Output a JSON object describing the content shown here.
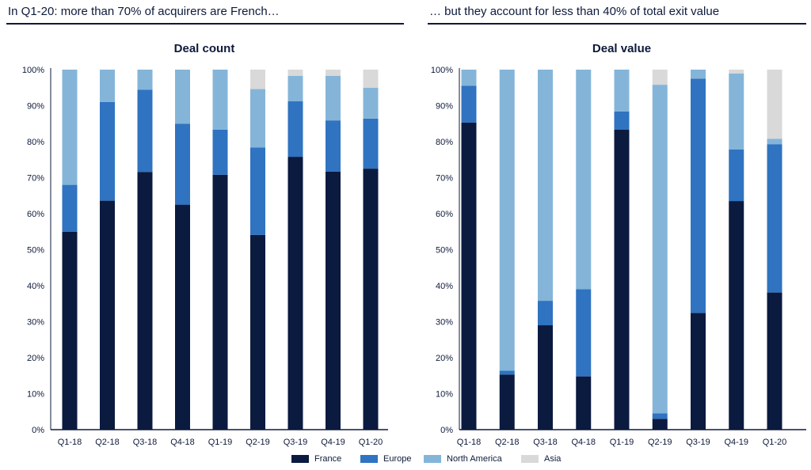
{
  "headlines": {
    "left": "In Q1-20: more than 70% of acquirers are French…",
    "right": "… but they account for less than 40% of total exit value"
  },
  "colors": {
    "France": "#0b1a3f",
    "Europe": "#2f73c1",
    "North America": "#84b5d9",
    "Asia": "#d9d9d9",
    "axis": "#0e1a3a"
  },
  "legend": {
    "items": [
      "France",
      "Europe",
      "North America",
      "Asia"
    ]
  },
  "chart_data": [
    {
      "type": "bar",
      "stacked": true,
      "title": "Deal count",
      "xlabel": "",
      "ylabel": "",
      "ylim": [
        0,
        100
      ],
      "y_ticks": [
        "0%",
        "10%",
        "20%",
        "30%",
        "40%",
        "50%",
        "60%",
        "70%",
        "80%",
        "90%",
        "100%"
      ],
      "categories": [
        "Q1-18",
        "Q2-18",
        "Q3-18",
        "Q4-18",
        "Q1-19",
        "Q2-19",
        "Q3-19",
        "Q4-19",
        "Q1-20"
      ],
      "series": [
        {
          "name": "France",
          "values": [
            55,
            63.6,
            71.6,
            62.5,
            70.8,
            54.1,
            75.8,
            71.7,
            72.5
          ]
        },
        {
          "name": "Europe",
          "values": [
            13,
            27.4,
            22.8,
            22.5,
            12.5,
            24.3,
            15.4,
            14.2,
            13.9
          ]
        },
        {
          "name": "North America",
          "values": [
            32,
            9,
            5.6,
            15,
            16.7,
            16.2,
            7.1,
            12.4,
            8.6
          ]
        },
        {
          "name": "Asia",
          "values": [
            0,
            0,
            0,
            0,
            0,
            5.4,
            1.7,
            1.7,
            5
          ]
        }
      ]
    },
    {
      "type": "bar",
      "stacked": true,
      "title": "Deal value",
      "xlabel": "",
      "ylabel": "",
      "ylim": [
        0,
        100
      ],
      "y_ticks": [
        "0%",
        "10%",
        "20%",
        "30%",
        "40%",
        "50%",
        "60%",
        "70%",
        "80%",
        "90%",
        "100%"
      ],
      "categories": [
        "Q1-18",
        "Q2-18",
        "Q3-18",
        "Q4-18",
        "Q1-19",
        "Q2-19",
        "Q3-19",
        "Q4-19",
        "Q1-20"
      ],
      "series": [
        {
          "name": "France",
          "values": [
            85.3,
            15.3,
            29,
            14.8,
            83.3,
            3,
            32.4,
            63.5,
            38.1
          ]
        },
        {
          "name": "Europe",
          "values": [
            10.2,
            1.1,
            6.8,
            24.2,
            5.1,
            1.5,
            65.1,
            14.3,
            41.2
          ]
        },
        {
          "name": "North America",
          "values": [
            4.5,
            83.6,
            64.2,
            61,
            11.6,
            91.3,
            2.5,
            21.1,
            1.5
          ]
        },
        {
          "name": "Asia",
          "values": [
            0,
            0,
            0,
            0,
            0,
            4.2,
            0,
            1.1,
            19.2
          ]
        }
      ]
    }
  ]
}
